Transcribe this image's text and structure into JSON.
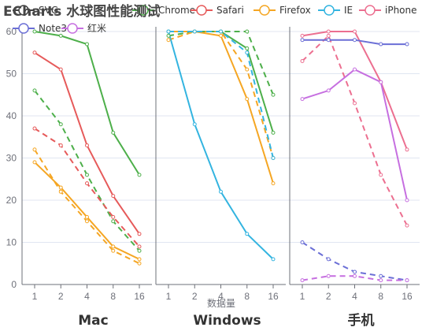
{
  "title": "ECharts 水球图性能测试",
  "chart_data": {
    "type": "line",
    "categories": [
      "1",
      "2",
      "4",
      "8",
      "16"
    ],
    "ylim": [
      0,
      60
    ],
    "yticks": [
      0,
      10,
      20,
      30,
      40,
      50,
      60
    ],
    "grid": true,
    "xlabel": "数据量",
    "legend_position": "top",
    "legend": [
      {
        "name": "SVG",
        "color": "#444444"
      },
      {
        "name": "Chrome",
        "color": "#4daf4a"
      },
      {
        "name": "Safari",
        "color": "#e65a5a"
      },
      {
        "name": "Firefox",
        "color": "#f5a623"
      },
      {
        "name": "IE",
        "color": "#33b4e0"
      },
      {
        "name": "iPhone",
        "color": "#ec6f90"
      },
      {
        "name": "Note3",
        "color": "#6b6fd6"
      },
      {
        "name": "红米",
        "color": "#c66fe0"
      }
    ],
    "groups": [
      {
        "label": "Mac",
        "series": [
          {
            "name": "Chrome",
            "color": "#4daf4a",
            "dashed": false,
            "values": [
              60,
              59,
              57,
              36,
              26
            ]
          },
          {
            "name": "Chrome",
            "color": "#4daf4a",
            "dashed": true,
            "values": [
              46,
              38,
              26,
              15,
              8
            ]
          },
          {
            "name": "Safari",
            "color": "#e65a5a",
            "dashed": false,
            "values": [
              55,
              51,
              33,
              21,
              12
            ]
          },
          {
            "name": "Safari",
            "color": "#e65a5a",
            "dashed": true,
            "values": [
              37,
              33,
              24,
              16,
              9
            ]
          },
          {
            "name": "Firefox",
            "color": "#f5a623",
            "dashed": false,
            "values": [
              29,
              23,
              16,
              9,
              6
            ]
          },
          {
            "name": "Firefox",
            "color": "#f5a623",
            "dashed": true,
            "values": [
              32,
              22,
              15,
              8,
              5
            ]
          }
        ]
      },
      {
        "label": "Windows",
        "series": [
          {
            "name": "Chrome",
            "color": "#4daf4a",
            "dashed": false,
            "values": [
              60,
              60,
              60,
              56,
              36
            ]
          },
          {
            "name": "Chrome",
            "color": "#4daf4a",
            "dashed": true,
            "values": [
              59,
              60,
              60,
              60,
              45
            ]
          },
          {
            "name": "Firefox",
            "color": "#f5a623",
            "dashed": false,
            "values": [
              60,
              60,
              59,
              44,
              24
            ]
          },
          {
            "name": "Firefox",
            "color": "#f5a623",
            "dashed": true,
            "values": [
              58,
              60,
              60,
              51,
              30
            ]
          },
          {
            "name": "IE",
            "color": "#33b4e0",
            "dashed": false,
            "values": [
              60,
              38,
              22,
              12,
              6
            ]
          },
          {
            "name": "IE",
            "color": "#33b4e0",
            "dashed": true,
            "values": [
              60,
              60,
              60,
              55,
              30
            ]
          }
        ]
      },
      {
        "label": "手机",
        "series": [
          {
            "name": "iPhone",
            "color": "#ec6f90",
            "dashed": false,
            "values": [
              59,
              60,
              60,
              48,
              32
            ]
          },
          {
            "name": "iPhone",
            "color": "#ec6f90",
            "dashed": true,
            "values": [
              53,
              59,
              43,
              26,
              14
            ]
          },
          {
            "name": "Note3",
            "color": "#6b6fd6",
            "dashed": false,
            "values": [
              58,
              58,
              58,
              57,
              57
            ]
          },
          {
            "name": "Note3",
            "color": "#6b6fd6",
            "dashed": true,
            "values": [
              10,
              6,
              3,
              2,
              1
            ]
          },
          {
            "name": "红米",
            "color": "#c66fe0",
            "dashed": false,
            "values": [
              44,
              46,
              51,
              48,
              20
            ]
          },
          {
            "name": "红米",
            "color": "#c66fe0",
            "dashed": true,
            "values": [
              1,
              2,
              2,
              1,
              1
            ]
          }
        ]
      }
    ]
  }
}
